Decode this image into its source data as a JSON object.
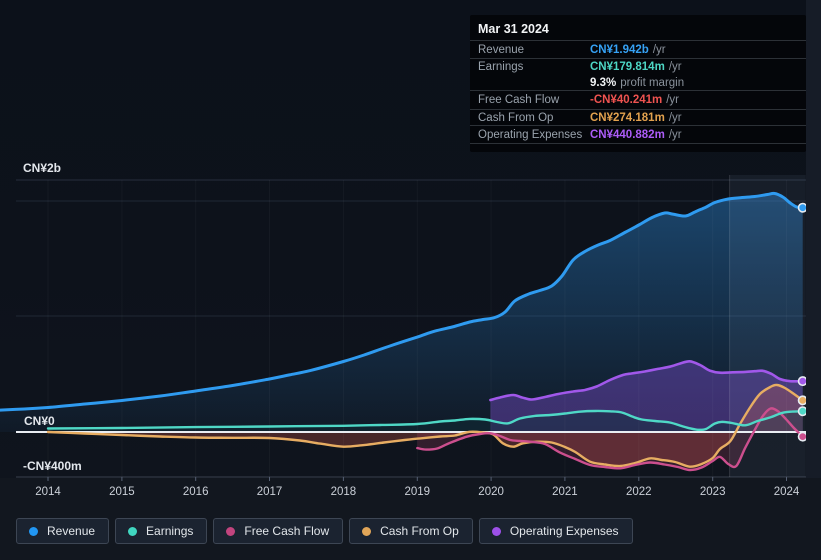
{
  "tooltip": {
    "date": "Mar 31 2024",
    "rows": [
      {
        "label": "Revenue",
        "value": "CN¥1.942b",
        "suffix": "/yr",
        "color": "#36a2f5"
      },
      {
        "label": "Earnings",
        "value": "CN¥179.814m",
        "suffix": "/yr",
        "color": "#4dd6c4",
        "margin_value": "9.3%",
        "margin_label": "profit margin"
      },
      {
        "label": "Free Cash Flow",
        "value": "-CN¥40.241m",
        "suffix": "/yr",
        "color": "#ef5350"
      },
      {
        "label": "Cash From Op",
        "value": "CN¥274.181m",
        "suffix": "/yr",
        "color": "#e2a14e"
      },
      {
        "label": "Operating Expenses",
        "value": "CN¥440.882m",
        "suffix": "/yr",
        "color": "#ab5cf7"
      }
    ]
  },
  "legend": {
    "items": [
      {
        "label": "Revenue",
        "color": "#2196f3"
      },
      {
        "label": "Earnings",
        "color": "#40d6c0"
      },
      {
        "label": "Free Cash Flow",
        "color": "#c2447e"
      },
      {
        "label": "Cash From Op",
        "color": "#e0a558"
      },
      {
        "label": "Operating Expenses",
        "color": "#9d50e8"
      }
    ]
  },
  "chart_data": {
    "type": "line",
    "unit": "CN¥ millions per year",
    "grid": true,
    "legend_position": "bottom",
    "y_axis": {
      "labels": [
        "CN¥2b",
        "CN¥0",
        "-CN¥400m"
      ],
      "label_values_m": [
        2000,
        0,
        -400
      ],
      "gridline_values_m": [
        2000,
        1000,
        0,
        -400
      ],
      "ylim_m": [
        -440,
        2180
      ]
    },
    "x_axis": {
      "ticks": [
        2014,
        2015,
        2016,
        2017,
        2018,
        2019,
        2020,
        2021,
        2022,
        2023,
        2024
      ],
      "xlim": [
        2013.35,
        2024.26
      ]
    },
    "highlight_band": {
      "start": 2023.23,
      "end": 2024.26
    },
    "series": [
      {
        "name": "Revenue",
        "color": "#2f9bf0",
        "width": 3,
        "fill": "gradient",
        "points": [
          [
            2013.35,
            190
          ],
          [
            2013.68,
            199
          ],
          [
            2014,
            212
          ],
          [
            2014.5,
            242
          ],
          [
            2015,
            273
          ],
          [
            2015.52,
            312
          ],
          [
            2016,
            355
          ],
          [
            2016.5,
            403
          ],
          [
            2017,
            459
          ],
          [
            2017.27,
            494
          ],
          [
            2017.55,
            532
          ],
          [
            2018,
            610
          ],
          [
            2018.28,
            667
          ],
          [
            2018.63,
            745
          ],
          [
            2019,
            822
          ],
          [
            2019.24,
            874
          ],
          [
            2019.5,
            913
          ],
          [
            2019.71,
            952
          ],
          [
            2019.89,
            974
          ],
          [
            2020.05,
            991
          ],
          [
            2020.19,
            1039
          ],
          [
            2020.32,
            1134
          ],
          [
            2020.49,
            1190
          ],
          [
            2020.66,
            1225
          ],
          [
            2020.82,
            1264
          ],
          [
            2020.96,
            1351
          ],
          [
            2021.11,
            1489
          ],
          [
            2021.27,
            1563
          ],
          [
            2021.45,
            1619
          ],
          [
            2021.61,
            1658
          ],
          [
            2021.81,
            1727
          ],
          [
            2022,
            1792
          ],
          [
            2022.18,
            1857
          ],
          [
            2022.35,
            1896
          ],
          [
            2022.46,
            1887
          ],
          [
            2022.63,
            1870
          ],
          [
            2022.76,
            1905
          ],
          [
            2022.9,
            1944
          ],
          [
            2023.03,
            1987
          ],
          [
            2023.21,
            2017
          ],
          [
            2023.4,
            2030
          ],
          [
            2023.57,
            2039
          ],
          [
            2023.74,
            2056
          ],
          [
            2023.84,
            2065
          ],
          [
            2023.95,
            2035
          ],
          [
            2024.05,
            1983
          ],
          [
            2024.14,
            1948
          ],
          [
            2024.22,
            1942
          ]
        ]
      },
      {
        "name": "Operating Expenses",
        "color": "#a158ea",
        "width": 2.6,
        "fill": "rgba(135,82,220,0.38)",
        "points": [
          [
            2019.99,
            277
          ],
          [
            2020.12,
            299
          ],
          [
            2020.3,
            320
          ],
          [
            2020.42,
            299
          ],
          [
            2020.55,
            281
          ],
          [
            2020.73,
            303
          ],
          [
            2020.91,
            329
          ],
          [
            2021.11,
            351
          ],
          [
            2021.27,
            364
          ],
          [
            2021.43,
            394
          ],
          [
            2021.61,
            450
          ],
          [
            2021.79,
            494
          ],
          [
            2021.91,
            507
          ],
          [
            2022.08,
            524
          ],
          [
            2022.26,
            546
          ],
          [
            2022.42,
            565
          ],
          [
            2022.56,
            593
          ],
          [
            2022.69,
            612
          ],
          [
            2022.83,
            580
          ],
          [
            2022.96,
            532
          ],
          [
            2023.1,
            513
          ],
          [
            2023.27,
            517
          ],
          [
            2023.44,
            520
          ],
          [
            2023.57,
            526
          ],
          [
            2023.68,
            530
          ],
          [
            2023.8,
            502
          ],
          [
            2023.91,
            459
          ],
          [
            2024.05,
            440
          ],
          [
            2024.22,
            441
          ]
        ]
      },
      {
        "name": "Cash From Op",
        "color": "#e7ad62",
        "width": 2.4,
        "fill": "rgba(203,85,68,0.30)",
        "points": [
          [
            2014,
            0
          ],
          [
            2014.5,
            -13
          ],
          [
            2015,
            -26
          ],
          [
            2015.52,
            -39
          ],
          [
            2016,
            -48
          ],
          [
            2016.5,
            -50
          ],
          [
            2017,
            -52
          ],
          [
            2017.41,
            -74
          ],
          [
            2017.68,
            -100
          ],
          [
            2018,
            -127
          ],
          [
            2018.28,
            -113
          ],
          [
            2018.55,
            -91
          ],
          [
            2018.83,
            -69
          ],
          [
            2019.04,
            -55
          ],
          [
            2019.31,
            -39
          ],
          [
            2019.51,
            -30
          ],
          [
            2019.71,
            2
          ],
          [
            2019.89,
            -4
          ],
          [
            2020.03,
            -22
          ],
          [
            2020.16,
            -98
          ],
          [
            2020.3,
            -127
          ],
          [
            2020.43,
            -98
          ],
          [
            2020.62,
            -84
          ],
          [
            2020.82,
            -91
          ],
          [
            2021,
            -130
          ],
          [
            2021.14,
            -173
          ],
          [
            2021.34,
            -257
          ],
          [
            2021.54,
            -281
          ],
          [
            2021.75,
            -294
          ],
          [
            2021.95,
            -268
          ],
          [
            2022.15,
            -229
          ],
          [
            2022.31,
            -242
          ],
          [
            2022.49,
            -260
          ],
          [
            2022.69,
            -300
          ],
          [
            2022.85,
            -277
          ],
          [
            2023,
            -225
          ],
          [
            2023.1,
            -147
          ],
          [
            2023.24,
            -78
          ],
          [
            2023.37,
            69
          ],
          [
            2023.51,
            216
          ],
          [
            2023.64,
            329
          ],
          [
            2023.78,
            390
          ],
          [
            2023.87,
            407
          ],
          [
            2023.98,
            381
          ],
          [
            2024.12,
            320
          ],
          [
            2024.22,
            274
          ]
        ]
      },
      {
        "name": "Free Cash Flow",
        "color": "#cc4f8e",
        "width": 2.4,
        "fill": "rgba(194,68,110,0.20)",
        "points": [
          [
            2019,
            -139
          ],
          [
            2019.12,
            -152
          ],
          [
            2019.27,
            -143
          ],
          [
            2019.44,
            -95
          ],
          [
            2019.67,
            -41
          ],
          [
            2019.85,
            -17
          ],
          [
            2019.99,
            -11
          ],
          [
            2020.12,
            -35
          ],
          [
            2020.26,
            -69
          ],
          [
            2020.39,
            -78
          ],
          [
            2020.53,
            -84
          ],
          [
            2020.73,
            -104
          ],
          [
            2020.93,
            -177
          ],
          [
            2021.14,
            -234
          ],
          [
            2021.34,
            -286
          ],
          [
            2021.54,
            -303
          ],
          [
            2021.75,
            -314
          ],
          [
            2021.95,
            -286
          ],
          [
            2022.15,
            -264
          ],
          [
            2022.35,
            -281
          ],
          [
            2022.53,
            -303
          ],
          [
            2022.69,
            -329
          ],
          [
            2022.85,
            -307
          ],
          [
            2023,
            -251
          ],
          [
            2023.1,
            -216
          ],
          [
            2023.21,
            -277
          ],
          [
            2023.32,
            -294
          ],
          [
            2023.44,
            -139
          ],
          [
            2023.57,
            17
          ],
          [
            2023.68,
            139
          ],
          [
            2023.78,
            203
          ],
          [
            2023.88,
            182
          ],
          [
            2023.99,
            113
          ],
          [
            2024.1,
            35
          ],
          [
            2024.22,
            -40
          ]
        ]
      },
      {
        "name": "Earnings",
        "color": "#4fd8c6",
        "width": 2.4,
        "fill": "rgba(16,48,58,0.45)",
        "points": [
          [
            2014,
            30
          ],
          [
            2015,
            35
          ],
          [
            2016,
            42
          ],
          [
            2017,
            48
          ],
          [
            2018,
            54
          ],
          [
            2018.5,
            61
          ],
          [
            2019,
            69
          ],
          [
            2019.31,
            91
          ],
          [
            2019.51,
            100
          ],
          [
            2019.71,
            113
          ],
          [
            2019.92,
            108
          ],
          [
            2020.08,
            87
          ],
          [
            2020.23,
            75
          ],
          [
            2020.39,
            117
          ],
          [
            2020.59,
            139
          ],
          [
            2020.8,
            147
          ],
          [
            2021,
            160
          ],
          [
            2021.2,
            176
          ],
          [
            2021.41,
            182
          ],
          [
            2021.61,
            179
          ],
          [
            2021.77,
            169
          ],
          [
            2021.91,
            134
          ],
          [
            2022.04,
            108
          ],
          [
            2022.22,
            95
          ],
          [
            2022.42,
            82
          ],
          [
            2022.58,
            52
          ],
          [
            2022.69,
            32
          ],
          [
            2022.8,
            19
          ],
          [
            2022.91,
            26
          ],
          [
            2023.03,
            74
          ],
          [
            2023.13,
            88
          ],
          [
            2023.26,
            78
          ],
          [
            2023.44,
            58
          ],
          [
            2023.61,
            95
          ],
          [
            2023.78,
            126
          ],
          [
            2023.94,
            165
          ],
          [
            2024.08,
            177
          ],
          [
            2024.22,
            180
          ]
        ]
      }
    ]
  }
}
